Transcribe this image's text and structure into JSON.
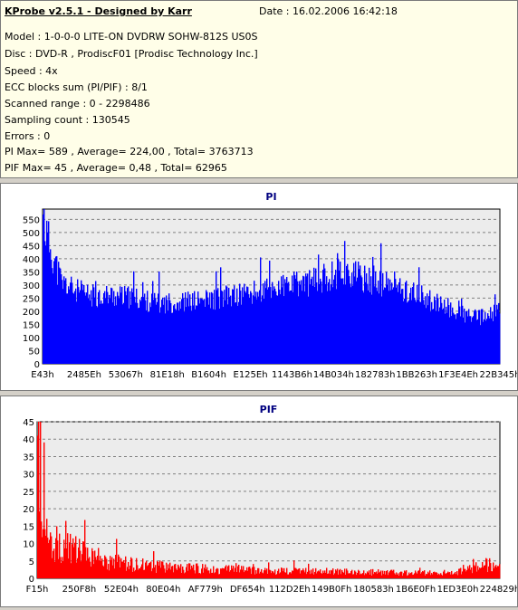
{
  "header": {
    "title": "KProbe v2.5.1 - Designed by Karr",
    "date": "Date : 16.02.2006 16:42:18"
  },
  "info_lines": [
    "Model : 1-0-0-0 LITE-ON DVDRW SOHW-812S  US0S",
    "Disc : DVD-R , ProdiscF01 [Prodisc Technology Inc.]",
    "Speed : 4x",
    "ECC blocks sum (PI/PIF) : 8/1",
    "Scanned range : 0 - 2298486",
    "Sampling count : 130545",
    "Errors : 0",
    "PI Max= 589 , Average= 224,00 , Total= 3763713",
    "PIF Max= 45 , Average= 0,48 , Total= 62965"
  ],
  "colors": {
    "pi": "#0000ff",
    "pif": "#ff0000",
    "title": "#000080",
    "grid": "#808080",
    "plot_bg": "#ececec"
  },
  "chart_data": [
    {
      "type": "area",
      "title": "PI",
      "ylim": [
        0,
        589
      ],
      "yticks": [
        0,
        50,
        100,
        150,
        200,
        250,
        300,
        350,
        400,
        450,
        500,
        550
      ],
      "grid": true,
      "xtick_labels": [
        "E43h",
        "2485Eh",
        "53067h",
        "81E18h",
        "B1604h",
        "E125Eh",
        "1143B6h",
        "14B034h",
        "182783h",
        "1BB263h",
        "1F3E4Eh",
        "22B345h"
      ],
      "x": [
        0,
        0.02,
        0.04,
        0.07,
        0.1,
        0.15,
        0.2,
        0.25,
        0.3,
        0.35,
        0.4,
        0.45,
        0.5,
        0.55,
        0.6,
        0.63,
        0.65,
        0.68,
        0.7,
        0.75,
        0.8,
        0.85,
        0.88,
        0.9,
        0.95,
        0.98,
        1.0
      ],
      "values": [
        540,
        420,
        310,
        280,
        260,
        260,
        250,
        230,
        235,
        240,
        255,
        265,
        285,
        300,
        315,
        335,
        350,
        340,
        325,
        300,
        275,
        240,
        210,
        200,
        175,
        185,
        205
      ]
    },
    {
      "type": "area",
      "title": "PIF",
      "ylim": [
        0,
        45
      ],
      "yticks": [
        0,
        5,
        10,
        15,
        20,
        25,
        30,
        35,
        40,
        45
      ],
      "grid": true,
      "xtick_labels": [
        "F15h",
        "250F8h",
        "52E04h",
        "80E04h",
        "AF779h",
        "DF654h",
        "112D2Eh",
        "149B0Fh",
        "180583h",
        "1B6E0Fh",
        "1ED3E0h",
        "224829h"
      ],
      "x": [
        0,
        0.01,
        0.02,
        0.04,
        0.06,
        0.1,
        0.15,
        0.2,
        0.3,
        0.4,
        0.5,
        0.6,
        0.7,
        0.8,
        0.9,
        0.93,
        0.95,
        0.97,
        1.0
      ],
      "values": [
        30,
        20,
        12,
        10,
        9,
        7,
        5,
        4,
        3,
        2.5,
        2.2,
        2,
        1.8,
        1.5,
        1.5,
        2.5,
        4,
        4,
        3
      ]
    }
  ]
}
